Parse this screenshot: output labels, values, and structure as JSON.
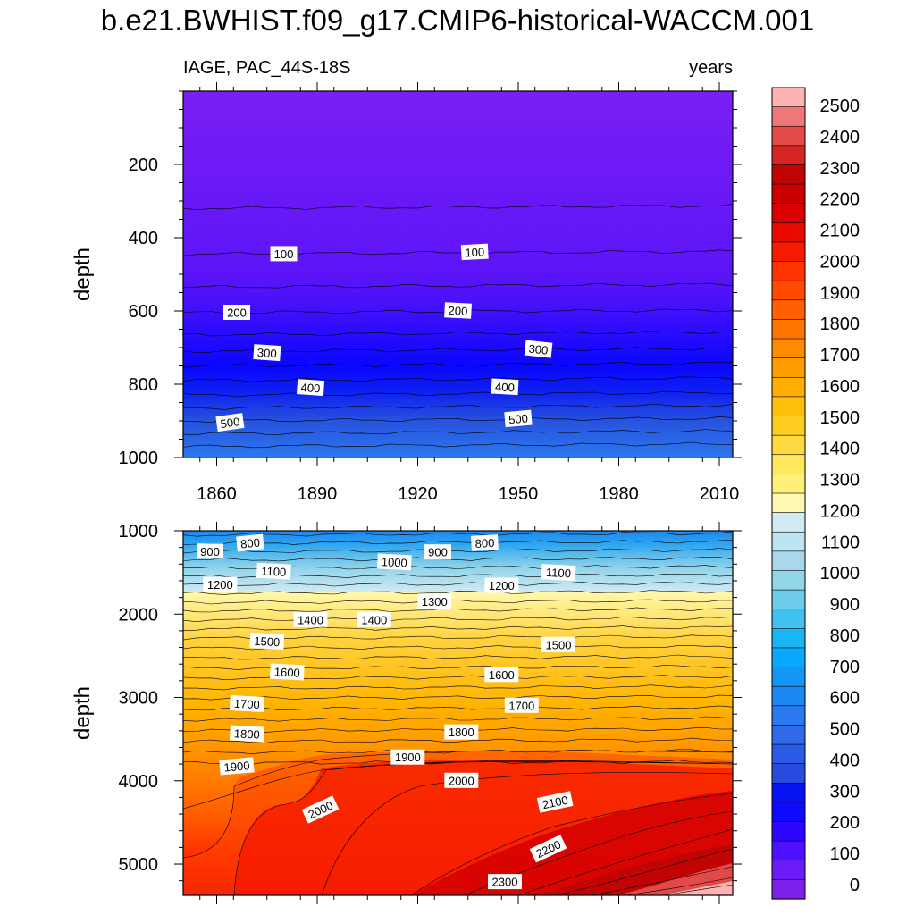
{
  "title": "b.e21.BWHIST.f09_g17.CMIP6-historical-WACCM.001",
  "chart_data": [
    {
      "type": "heatmap",
      "panel": "upper",
      "left_title": "IAGE, PAC_44S-18S",
      "right_title": "years",
      "ylabel": "depth",
      "xlabel": "",
      "xlim": [
        1850,
        2014
      ],
      "ylim": [
        1000,
        0
      ],
      "x_ticks": [
        1860,
        1890,
        1920,
        1950,
        1980,
        2010
      ],
      "y_ticks": [
        200,
        400,
        600,
        800,
        1000
      ],
      "contour_interval": 50,
      "contour_depths_at_start": [
        320,
        445,
        535,
        605,
        665,
        710,
        750,
        790,
        830,
        865,
        900,
        935,
        970
      ],
      "labels": [
        {
          "text": "100",
          "x": 1880,
          "y": 445
        },
        {
          "text": "100",
          "x": 1937,
          "y": 440
        },
        {
          "text": "200",
          "x": 1866,
          "y": 605
        },
        {
          "text": "200",
          "x": 1932,
          "y": 600
        },
        {
          "text": "300",
          "x": 1875,
          "y": 715
        },
        {
          "text": "300",
          "x": 1956,
          "y": 705
        },
        {
          "text": "400",
          "x": 1888,
          "y": 810
        },
        {
          "text": "400",
          "x": 1946,
          "y": 808
        },
        {
          "text": "500",
          "x": 1864,
          "y": 905
        },
        {
          "text": "500",
          "x": 1950,
          "y": 895
        }
      ]
    },
    {
      "type": "heatmap",
      "panel": "lower",
      "ylabel": "depth",
      "xlabel": "",
      "xlim": [
        1850,
        2014
      ],
      "ylim": [
        5375,
        1000
      ],
      "y_ticks": [
        1000,
        2000,
        3000,
        4000,
        5000
      ],
      "contour_interval": 50,
      "contour_depths_at_start": [
        1050,
        1150,
        1250,
        1350,
        1450,
        1550,
        1650,
        1750,
        1860,
        1960,
        2070,
        2180,
        2290,
        2410,
        2530,
        2650,
        2770,
        2890,
        3010,
        3140,
        3270,
        3400,
        3530,
        3660,
        3790
      ],
      "labels": [
        {
          "text": "800",
          "x": 1870,
          "y": 1150
        },
        {
          "text": "900",
          "x": 1858,
          "y": 1250
        },
        {
          "text": "800",
          "x": 1940,
          "y": 1150
        },
        {
          "text": "900",
          "x": 1926,
          "y": 1260
        },
        {
          "text": "1000",
          "x": 1913,
          "y": 1380
        },
        {
          "text": "1100",
          "x": 1877,
          "y": 1490
        },
        {
          "text": "1100",
          "x": 1962,
          "y": 1505
        },
        {
          "text": "1200",
          "x": 1861,
          "y": 1650
        },
        {
          "text": "1200",
          "x": 1945,
          "y": 1660
        },
        {
          "text": "1300",
          "x": 1925,
          "y": 1850
        },
        {
          "text": "1400",
          "x": 1888,
          "y": 2070
        },
        {
          "text": "1400",
          "x": 1907,
          "y": 2070
        },
        {
          "text": "1500",
          "x": 1875,
          "y": 2330
        },
        {
          "text": "1500",
          "x": 1962,
          "y": 2370
        },
        {
          "text": "1600",
          "x": 1881,
          "y": 2700
        },
        {
          "text": "1600",
          "x": 1945,
          "y": 2730
        },
        {
          "text": "1700",
          "x": 1869,
          "y": 3080
        },
        {
          "text": "1700",
          "x": 1951,
          "y": 3100
        },
        {
          "text": "1800",
          "x": 1869,
          "y": 3440
        },
        {
          "text": "1800",
          "x": 1933,
          "y": 3420
        },
        {
          "text": "1900",
          "x": 1866,
          "y": 3830
        },
        {
          "text": "1900",
          "x": 1917,
          "y": 3720
        },
        {
          "text": "2000",
          "x": 1891,
          "y": 4350
        },
        {
          "text": "2000",
          "x": 1933,
          "y": 4000
        },
        {
          "text": "2100",
          "x": 1961,
          "y": 4260
        },
        {
          "text": "2200",
          "x": 1959,
          "y": 4820
        },
        {
          "text": "2300",
          "x": 1946,
          "y": 5215
        }
      ]
    }
  ],
  "colorbar": {
    "levels": [
      0,
      100,
      200,
      300,
      400,
      500,
      600,
      700,
      800,
      900,
      1000,
      1100,
      1200,
      1300,
      1400,
      1500,
      1600,
      1700,
      1800,
      1900,
      2000,
      2100,
      2200,
      2300,
      2400,
      2500
    ],
    "colors": [
      "#7c20ea",
      "#6b1cf6",
      "#4e10ff",
      "#2e06ff",
      "#1008ff",
      "#0612f0",
      "#2a4bdf",
      "#2b5ae6",
      "#2e6ae9",
      "#2a79ee",
      "#1e88f2",
      "#1396f6",
      "#0aa8fa",
      "#19b5f5",
      "#40c2f0",
      "#6ccce9",
      "#92d6ea",
      "#aad7ec",
      "#bde4f1",
      "#d2ebf2",
      "#fff8b0",
      "#fff07a",
      "#ffe85e",
      "#ffd940",
      "#ffcc22",
      "#ffbd0c",
      "#ffae00",
      "#ff9c00",
      "#ff8a00",
      "#ff7500",
      "#ff6000",
      "#ff4a00",
      "#ff3300",
      "#f51a00",
      "#e80800",
      "#dc0000",
      "#cc0000",
      "#c10303",
      "#d62424",
      "#e24a4a",
      "#ee7878",
      "#ffb2b2"
    ]
  }
}
